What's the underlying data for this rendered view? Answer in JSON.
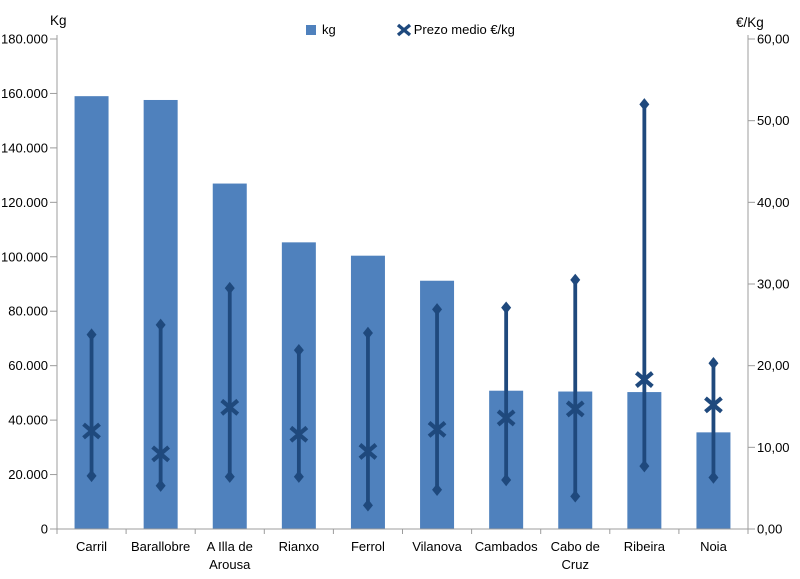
{
  "chart_data": {
    "type": "bar",
    "title": "",
    "categories": [
      "Carril",
      "Barallobre",
      "A Illa de Arousa",
      "Rianxo",
      "Ferrol",
      "Vilanova",
      "Cambados",
      "Cabo de Cruz",
      "Ribeira",
      "Noia"
    ],
    "series": [
      {
        "name": "kg",
        "type": "bar",
        "axis": "left",
        "values": [
          159000,
          157600,
          126900,
          105300,
          100400,
          91200,
          50800,
          50500,
          50300,
          35500
        ]
      },
      {
        "name": "Prezo medio €/kg",
        "type": "range-marker",
        "axis": "right",
        "mean": [
          12.0,
          9.2,
          14.9,
          11.6,
          9.5,
          12.2,
          13.6,
          14.7,
          18.3,
          15.2
        ],
        "max": [
          23.8,
          25.0,
          29.5,
          21.9,
          24.0,
          26.9,
          27.1,
          30.5,
          52.0,
          20.3
        ],
        "min": [
          6.5,
          5.3,
          6.4,
          6.4,
          2.9,
          4.8,
          6.0,
          4.0,
          7.7,
          6.3
        ]
      }
    ],
    "left_axis": {
      "title": "Kg",
      "min": 0,
      "max": 180000,
      "step": 20000,
      "tick_labels": [
        "0",
        "20.000",
        "40.000",
        "60.000",
        "80.000",
        "100.000",
        "120.000",
        "140.000",
        "160.000",
        "180.000"
      ]
    },
    "right_axis": {
      "title": "€/Kg",
      "min": 0,
      "max": 60,
      "step": 10,
      "tick_labels": [
        "0,00",
        "10,00",
        "20,00",
        "30,00",
        "40,00",
        "50,00",
        "60,00"
      ]
    },
    "legend": {
      "position": "top",
      "items": [
        "kg",
        "Prezo medio €/kg"
      ]
    },
    "grid": false,
    "colors": {
      "bar": "#4f81bd",
      "marker": "#1f497d",
      "axis_line": "#9c9c9c",
      "text": "#000000",
      "background": "#ffffff"
    }
  }
}
